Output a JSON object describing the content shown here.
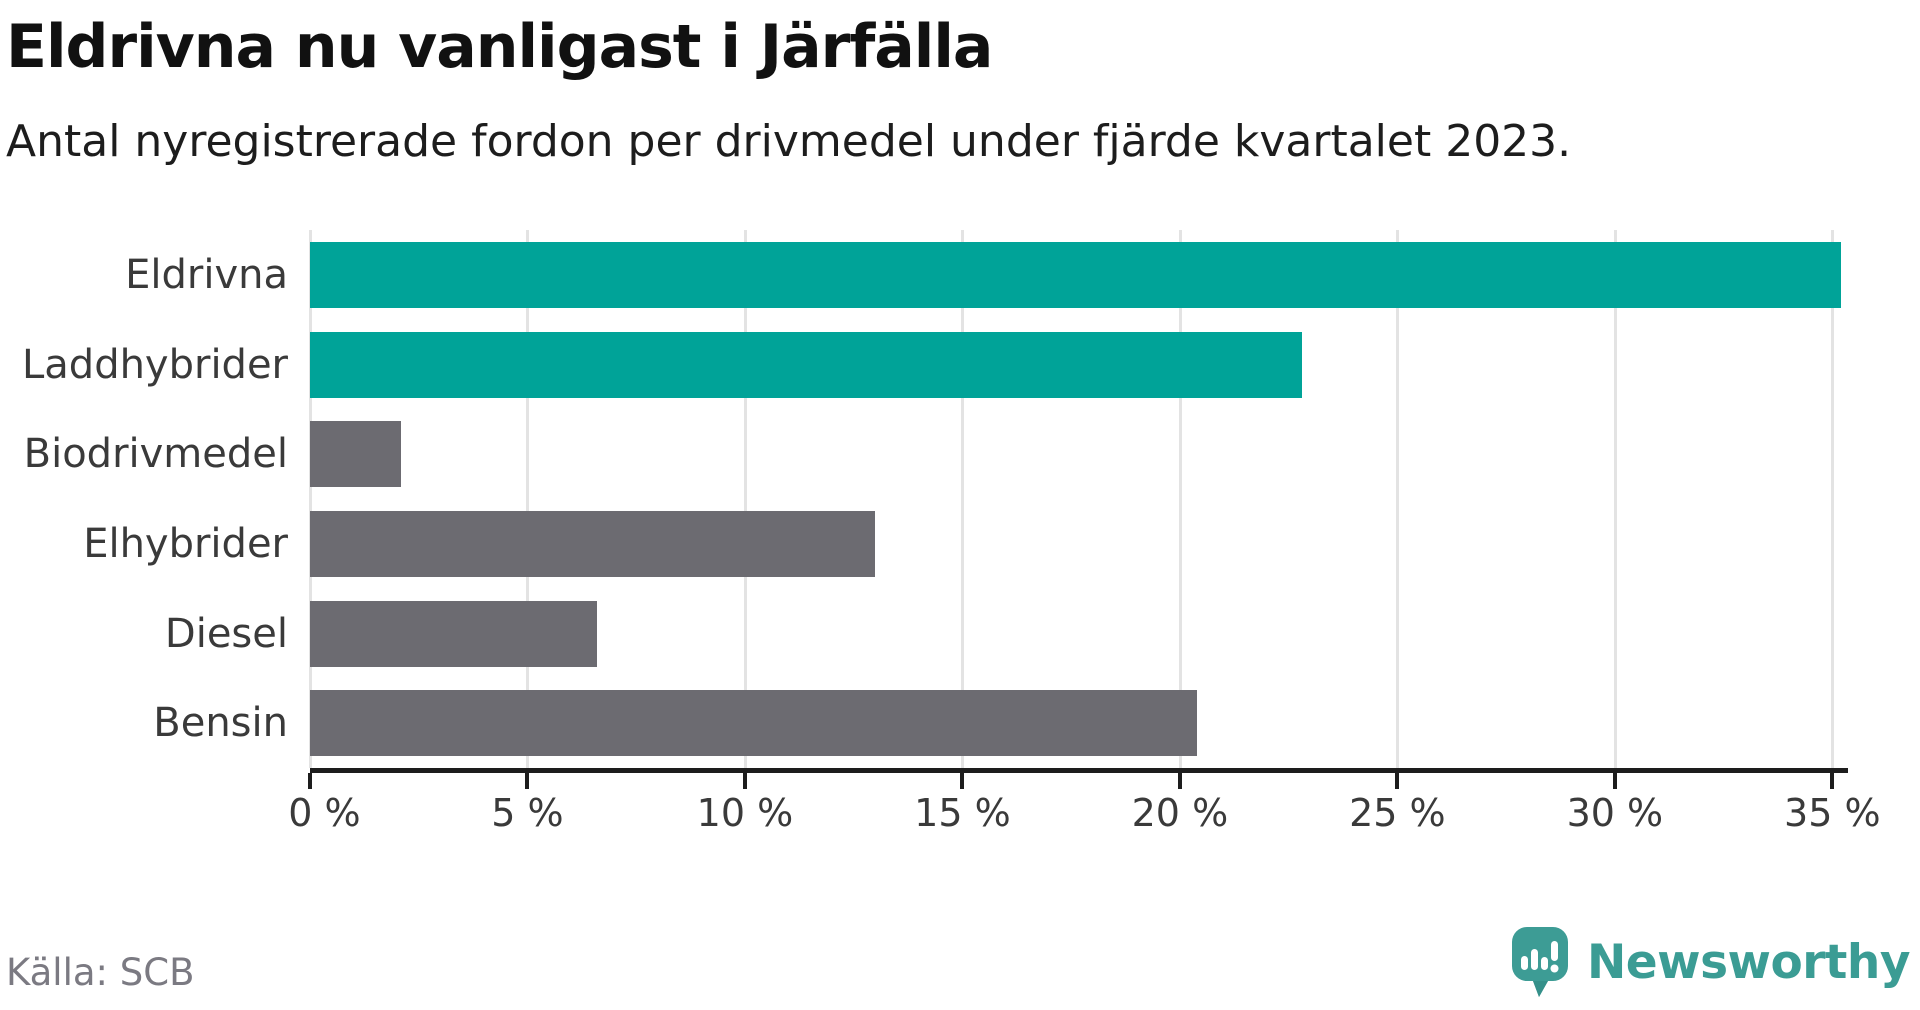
{
  "header": {
    "title": "Eldrivna nu vanligast i Järfälla",
    "subtitle": "Antal nyregistrerade fordon per drivmedel under fjärde kvartalet 2023."
  },
  "chart_data": {
    "type": "bar",
    "orientation": "horizontal",
    "title": "Eldrivna nu vanligast i Järfälla",
    "subtitle": "Antal nyregistrerade fordon per drivmedel under fjärde kvartalet 2023.",
    "categories": [
      "Eldrivna",
      "Laddhybrider",
      "Biodrivmedel",
      "Elhybrider",
      "Diesel",
      "Bensin"
    ],
    "values": [
      35.2,
      22.8,
      2.1,
      13.0,
      6.6,
      20.4
    ],
    "unit": "%",
    "bar_colors": [
      "#00a398",
      "#00a398",
      "#6c6b71",
      "#6c6b71",
      "#6c6b71",
      "#6c6b71"
    ],
    "highlight_color": "#00a398",
    "default_color": "#6c6b71",
    "x_tick_values": [
      0,
      5,
      10,
      15,
      20,
      25,
      30,
      35
    ],
    "x_tick_labels": [
      "0 %",
      "5 %",
      "10 %",
      "15 %",
      "20 %",
      "25 %",
      "30 %",
      "35 %"
    ],
    "x_axis_max": 35.36,
    "grid": true,
    "gridline_color": "#e3e3e3",
    "axis_color": "#1d1d1d"
  },
  "footer": {
    "source": "Källa: SCB",
    "brand": "Newsworthy",
    "brand_color": "#3b9c94"
  }
}
